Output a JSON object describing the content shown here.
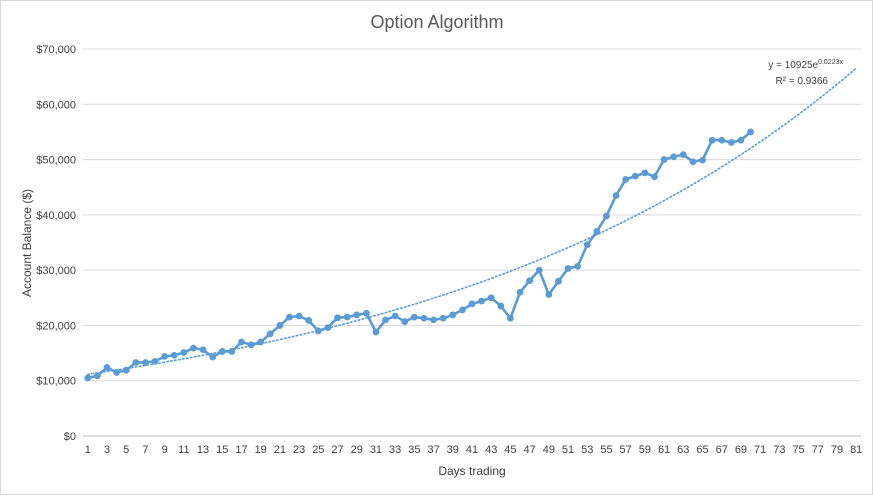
{
  "chart_data": {
    "type": "line",
    "title": "Option Algorithm",
    "xlabel": "Days trading",
    "ylabel": "Account Balance ($)",
    "xlim": [
      1,
      81
    ],
    "ylim": [
      0,
      70000
    ],
    "x_ticks": [
      "1",
      "3",
      "5",
      "7",
      "9",
      "11",
      "13",
      "15",
      "17",
      "19",
      "21",
      "23",
      "25",
      "27",
      "29",
      "31",
      "33",
      "35",
      "37",
      "39",
      "41",
      "43",
      "45",
      "47",
      "49",
      "51",
      "53",
      "55",
      "57",
      "59",
      "61",
      "63",
      "65",
      "67",
      "69",
      "71",
      "73",
      "75",
      "77",
      "79",
      "81"
    ],
    "y_ticks": [
      "$0",
      "$10,000",
      "$20,000",
      "$30,000",
      "$40,000",
      "$50,000",
      "$60,000",
      "$70,000"
    ],
    "grid": true,
    "legend": "none",
    "series": [
      {
        "color": "#5b9bd5",
        "x": [
          1,
          2,
          3,
          4,
          5,
          6,
          7,
          8,
          9,
          10,
          11,
          12,
          13,
          14,
          15,
          16,
          17,
          18,
          19,
          20,
          21,
          22,
          23,
          24,
          25,
          26,
          27,
          28,
          29,
          30,
          31,
          32,
          33,
          34,
          35,
          36,
          37,
          38,
          39,
          40,
          41,
          42,
          43,
          44,
          45,
          46,
          47,
          48,
          49,
          50,
          51,
          52,
          53,
          54,
          55,
          56,
          57,
          58,
          59,
          60,
          61,
          62,
          63,
          64,
          65,
          66,
          67,
          68,
          69,
          70
        ],
        "values": [
          10500,
          10900,
          12400,
          11500,
          11900,
          13300,
          13300,
          13500,
          14400,
          14600,
          15100,
          15900,
          15600,
          14300,
          15300,
          15300,
          17000,
          16500,
          17000,
          18500,
          20000,
          21500,
          21700,
          20900,
          19000,
          19600,
          21400,
          21500,
          21900,
          22200,
          18800,
          21000,
          21700,
          20700,
          21500,
          21300,
          21000,
          21300,
          21900,
          22800,
          23900,
          24400,
          25000,
          23500,
          21300,
          26000,
          28100,
          30000,
          25600,
          28000,
          30300,
          30700,
          34600,
          37000,
          39800,
          43500,
          46400,
          47000,
          47600,
          46900,
          50000,
          50500,
          50900,
          49600,
          49900,
          53500,
          53500,
          53100,
          53500,
          55000
        ]
      }
    ],
    "trendline": {
      "type": "exponential",
      "color": "#5b9bd5",
      "a": 10925,
      "b": 0.0223,
      "x_range": [
        1,
        81
      ],
      "equation_text": "y = 10925e",
      "equation_exp": "0.0223x",
      "r2_text": "R² = 0.9366"
    }
  }
}
